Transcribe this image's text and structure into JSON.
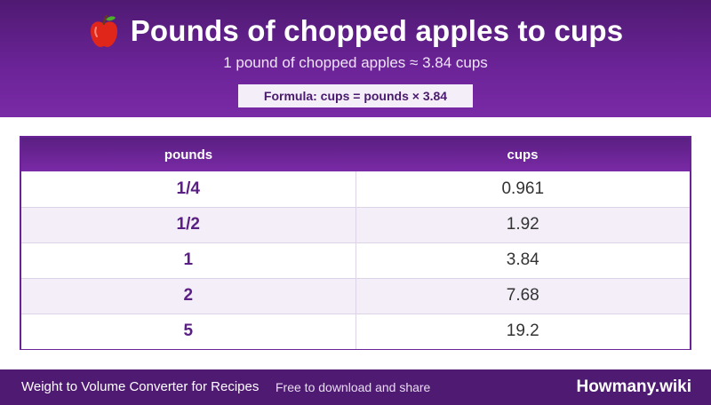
{
  "header": {
    "title": "Pounds of chopped apples to cups",
    "subtitle": "1 pound of chopped apples ≈ 3.84 cups",
    "formula": "Formula: cups = pounds × 3.84",
    "icon": "apple-icon"
  },
  "table": {
    "headers": [
      "pounds",
      "cups"
    ],
    "rows": [
      {
        "pounds": "1/4",
        "cups": "0.961"
      },
      {
        "pounds": "1/2",
        "cups": "1.92"
      },
      {
        "pounds": "1",
        "cups": "3.84"
      },
      {
        "pounds": "2",
        "cups": "7.68"
      },
      {
        "pounds": "5",
        "cups": "19.2"
      }
    ]
  },
  "footer": {
    "left": "Weight to Volume Converter for Recipes",
    "middle": "Free to download and share",
    "brand": "Howmany.wiki"
  },
  "colors": {
    "header_bg": "#6a2396",
    "accent_text": "#5a1f82",
    "stripe": "#f3eef8",
    "footer_bg": "#4f1a72"
  }
}
